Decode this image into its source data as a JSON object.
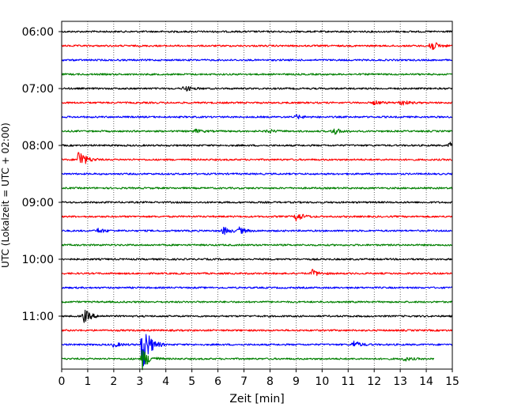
{
  "chart_data": {
    "type": "line",
    "title": "",
    "xlabel": "Zeit  [min]",
    "ylabel": "UTC (Lokalzeit = UTC + 02:00)",
    "xlim": [
      0,
      15
    ],
    "xticks": [
      0,
      1,
      2,
      3,
      4,
      5,
      6,
      7,
      8,
      9,
      10,
      11,
      12,
      13,
      14,
      15
    ],
    "y_tick_labels": [
      "06:00",
      "07:00",
      "08:00",
      "09:00",
      "10:00",
      "11:00"
    ],
    "trace_interval_min": 15,
    "start_time": "06:00",
    "grid": "vertical dotted",
    "color_cycle": [
      "#000000",
      "#ff0000",
      "#0000ff",
      "#008000"
    ],
    "series": [
      {
        "start": "06:00",
        "color": "#000000",
        "end_min": 15,
        "amplitude": 1.0,
        "events": []
      },
      {
        "start": "06:15",
        "color": "#ff0000",
        "end_min": 15,
        "amplitude": 1.0,
        "events": [
          {
            "t": 14.15,
            "amp": 8
          }
        ]
      },
      {
        "start": "06:30",
        "color": "#0000ff",
        "end_min": 15,
        "amplitude": 1.0,
        "events": []
      },
      {
        "start": "06:45",
        "color": "#008000",
        "end_min": 15,
        "amplitude": 1.0,
        "events": []
      },
      {
        "start": "07:00",
        "color": "#000000",
        "end_min": 15,
        "amplitude": 1.0,
        "events": [
          {
            "t": 4.7,
            "amp": 4
          }
        ]
      },
      {
        "start": "07:15",
        "color": "#ff0000",
        "end_min": 15,
        "amplitude": 1.0,
        "events": [
          {
            "t": 13.0,
            "amp": 4
          },
          {
            "t": 12.0,
            "amp": 2.5
          }
        ]
      },
      {
        "start": "07:30",
        "color": "#0000ff",
        "end_min": 15,
        "amplitude": 1.0,
        "events": [
          {
            "t": 9.0,
            "amp": 2.5
          }
        ]
      },
      {
        "start": "07:45",
        "color": "#008000",
        "end_min": 15,
        "amplitude": 1.0,
        "events": [
          {
            "t": 10.4,
            "amp": 5
          },
          {
            "t": 5.1,
            "amp": 2.5
          },
          {
            "t": 7.9,
            "amp": 2.5
          }
        ]
      },
      {
        "start": "08:00",
        "color": "#000000",
        "end_min": 15,
        "amplitude": 1.0,
        "events": [
          {
            "t": 14.9,
            "amp": 4
          }
        ]
      },
      {
        "start": "08:15",
        "color": "#ff0000",
        "end_min": 15,
        "amplitude": 1.0,
        "events": [
          {
            "t": 0.65,
            "amp": 14
          }
        ]
      },
      {
        "start": "08:30",
        "color": "#0000ff",
        "end_min": 15,
        "amplitude": 1.0,
        "events": []
      },
      {
        "start": "08:45",
        "color": "#008000",
        "end_min": 15,
        "amplitude": 1.0,
        "events": []
      },
      {
        "start": "09:00",
        "color": "#000000",
        "end_min": 15,
        "amplitude": 1.0,
        "events": []
      },
      {
        "start": "09:15",
        "color": "#ff0000",
        "end_min": 15,
        "amplitude": 1.0,
        "events": [
          {
            "t": 9.0,
            "amp": 6
          }
        ]
      },
      {
        "start": "09:30",
        "color": "#0000ff",
        "end_min": 15,
        "amplitude": 1.0,
        "events": [
          {
            "t": 6.2,
            "amp": 5
          },
          {
            "t": 6.8,
            "amp": 4
          },
          {
            "t": 1.4,
            "amp": 3
          }
        ]
      },
      {
        "start": "09:45",
        "color": "#008000",
        "end_min": 15,
        "amplitude": 1.0,
        "events": []
      },
      {
        "start": "10:00",
        "color": "#000000",
        "end_min": 15,
        "amplitude": 1.0,
        "events": []
      },
      {
        "start": "10:15",
        "color": "#ff0000",
        "end_min": 15,
        "amplitude": 1.0,
        "events": [
          {
            "t": 9.6,
            "amp": 5
          }
        ]
      },
      {
        "start": "10:30",
        "color": "#0000ff",
        "end_min": 15,
        "amplitude": 1.0,
        "events": []
      },
      {
        "start": "10:45",
        "color": "#008000",
        "end_min": 15,
        "amplitude": 1.0,
        "events": []
      },
      {
        "start": "11:00",
        "color": "#000000",
        "end_min": 15,
        "amplitude": 1.0,
        "events": [
          {
            "t": 0.85,
            "amp": 9
          }
        ]
      },
      {
        "start": "11:15",
        "color": "#ff0000",
        "end_min": 15,
        "amplitude": 1.0,
        "events": []
      },
      {
        "start": "11:30",
        "color": "#0000ff",
        "end_min": 15,
        "amplitude": 1.0,
        "events": [
          {
            "t": 3.1,
            "amp": 36
          },
          {
            "t": 11.2,
            "amp": 5
          },
          {
            "t": 2.0,
            "amp": 3
          }
        ]
      },
      {
        "start": "11:45",
        "color": "#008000",
        "end_min": 14.3,
        "amplitude": 1.0,
        "events": [
          {
            "t": 3.1,
            "amp": 14
          },
          {
            "t": 13.1,
            "amp": 3
          }
        ]
      }
    ]
  }
}
